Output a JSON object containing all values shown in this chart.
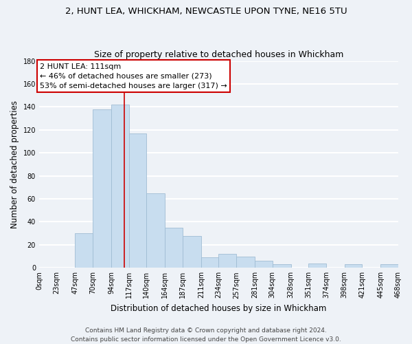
{
  "title": "2, HUNT LEA, WHICKHAM, NEWCASTLE UPON TYNE, NE16 5TU",
  "subtitle": "Size of property relative to detached houses in Whickham",
  "xlabel": "Distribution of detached houses by size in Whickham",
  "ylabel": "Number of detached properties",
  "bar_values": [
    0,
    0,
    30,
    138,
    142,
    117,
    65,
    35,
    28,
    9,
    12,
    10,
    6,
    3,
    0,
    4,
    0,
    3,
    0,
    3
  ],
  "bin_edges": [
    0,
    23,
    47,
    70,
    94,
    117,
    140,
    164,
    187,
    211,
    234,
    257,
    281,
    304,
    328,
    351,
    374,
    398,
    421,
    445,
    468
  ],
  "tick_labels": [
    "0sqm",
    "23sqm",
    "47sqm",
    "70sqm",
    "94sqm",
    "117sqm",
    "140sqm",
    "164sqm",
    "187sqm",
    "211sqm",
    "234sqm",
    "257sqm",
    "281sqm",
    "304sqm",
    "328sqm",
    "351sqm",
    "374sqm",
    "398sqm",
    "421sqm",
    "445sqm",
    "468sqm"
  ],
  "bar_color": "#c8ddef",
  "bar_edgecolor": "#a0bcd4",
  "vline_x": 111,
  "vline_color": "#cc0000",
  "annotation_title": "2 HUNT LEA: 111sqm",
  "annotation_line1": "← 46% of detached houses are smaller (273)",
  "annotation_line2": "53% of semi-detached houses are larger (317) →",
  "annotation_box_color": "#ffffff",
  "annotation_box_edgecolor": "#cc0000",
  "ylim": [
    0,
    180
  ],
  "yticks": [
    0,
    20,
    40,
    60,
    80,
    100,
    120,
    140,
    160,
    180
  ],
  "footer_line1": "Contains HM Land Registry data © Crown copyright and database right 2024.",
  "footer_line2": "Contains public sector information licensed under the Open Government Licence v3.0.",
  "background_color": "#eef2f7",
  "grid_color": "#ffffff",
  "title_fontsize": 9.5,
  "subtitle_fontsize": 9,
  "axis_label_fontsize": 8.5,
  "tick_fontsize": 7,
  "annotation_fontsize": 8,
  "footer_fontsize": 6.5
}
